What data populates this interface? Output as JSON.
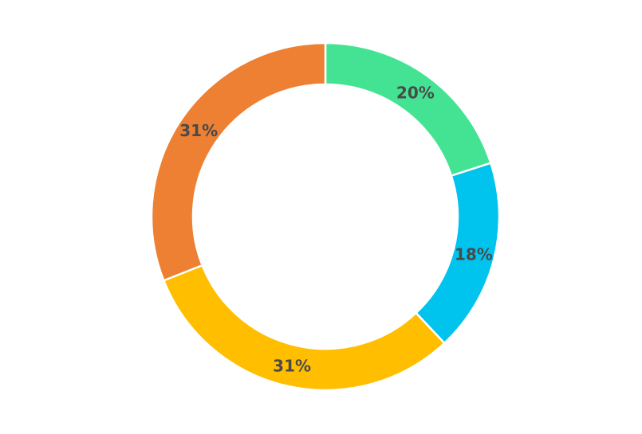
{
  "chart_data": {
    "type": "pie",
    "variant": "donut",
    "legend": "none",
    "slices": [
      {
        "label": "20%",
        "value": 20,
        "color": "#44e394"
      },
      {
        "label": "18%",
        "value": 18,
        "color": "#00c3ee"
      },
      {
        "label": "31%",
        "value": 31,
        "color": "#ffbe00"
      },
      {
        "label": "31%",
        "value": 31,
        "color": "#ed8032"
      }
    ]
  }
}
